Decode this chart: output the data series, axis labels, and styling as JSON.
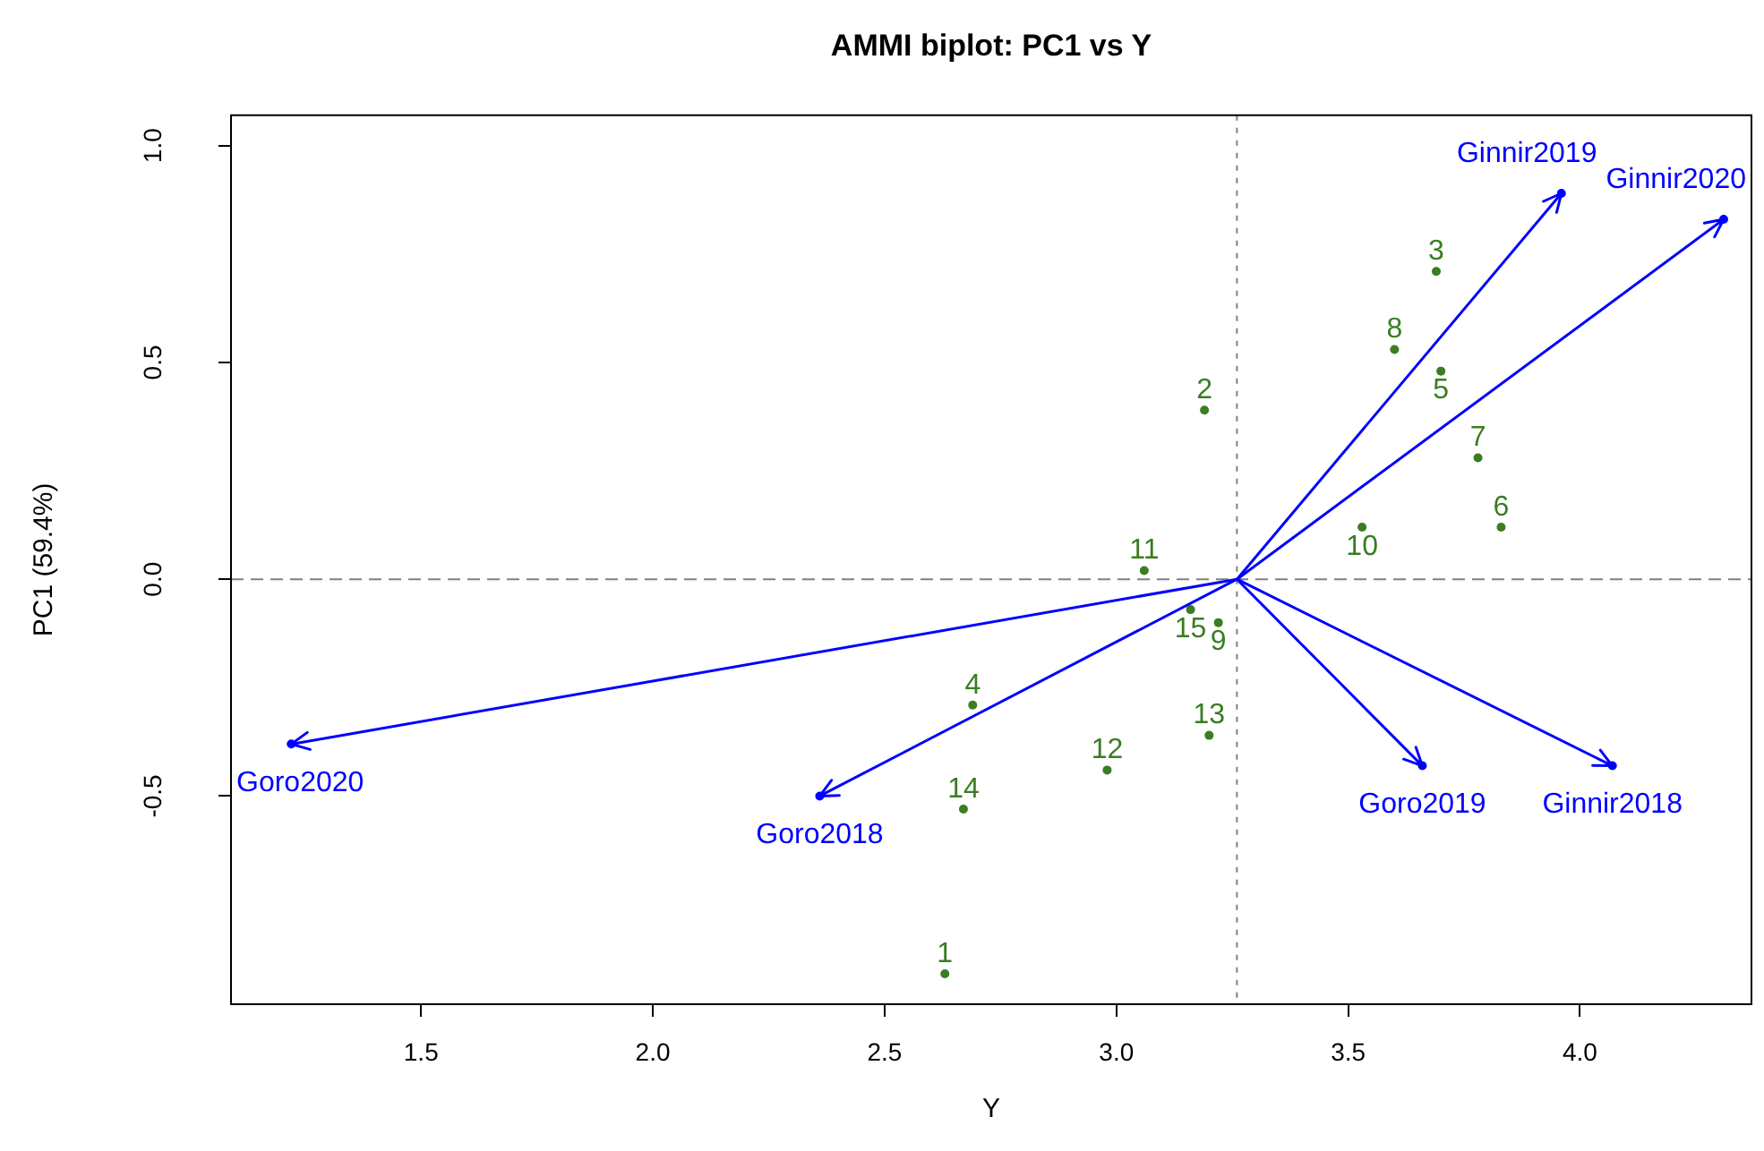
{
  "chart_data": {
    "type": "scatter",
    "title": "AMMI biplot: PC1 vs Y",
    "xlabel": "Y",
    "ylabel": "PC1 (59.4%)",
    "xlim": [
      1.09,
      4.37
    ],
    "ylim": [
      -0.98,
      1.07
    ],
    "xticks": [
      1.5,
      {
        "value": 2,
        "label": "2.0"
      },
      2.5,
      {
        "value": 3,
        "label": "3.0"
      },
      3.5,
      {
        "value": 4,
        "label": "4.0"
      }
    ],
    "yticks": [
      -0.5,
      {
        "value": 0,
        "label": "0.0"
      },
      0.5,
      {
        "value": 1,
        "label": "1.0"
      }
    ],
    "ref_lines": [
      {
        "axis": "x",
        "value": 3.26,
        "color": "#808080",
        "line_style": "dotted"
      },
      {
        "axis": "y",
        "value": 0,
        "color": "#808080",
        "line_style": "dashed"
      }
    ],
    "series": [
      {
        "type": "scatter",
        "color": "#3a7d22",
        "marker": "circle",
        "x": [
          2.63,
          3.19,
          3.69,
          2.69,
          3.7,
          3.83,
          3.78,
          3.6,
          3.22,
          3.53,
          3.06,
          2.98,
          3.2,
          2.67,
          3.16
        ],
        "values": [
          -0.91,
          0.39,
          0.71,
          -0.29,
          0.48,
          0.12,
          0.28,
          0.53,
          -0.1,
          0.12,
          0.02,
          -0.44,
          -0.36,
          -0.53,
          -0.07
        ]
      },
      {
        "type": "scatter",
        "color": "#0000ff",
        "marker": "circle",
        "x": [
          1.22,
          2.36,
          3.66,
          4.07,
          3.96,
          4.31
        ],
        "values": [
          -0.38,
          -0.5,
          -0.43,
          -0.43,
          0.89,
          0.83
        ]
      }
    ],
    "annotations": [
      {
        "text": "1",
        "x": 2.63,
        "y": -0.91
      },
      {
        "text": "2",
        "x": 3.19,
        "y": 0.39
      },
      {
        "text": "3",
        "x": 3.69,
        "y": 0.71
      },
      {
        "text": "4",
        "x": 2.69,
        "y": -0.29
      },
      {
        "text": "5",
        "x": 3.7,
        "y": 0.48
      },
      {
        "text": "6",
        "x": 3.83,
        "y": 0.12
      },
      {
        "text": "7",
        "x": 3.78,
        "y": 0.28
      },
      {
        "text": "8",
        "x": 3.6,
        "y": 0.53
      },
      {
        "text": "9",
        "x": 3.22,
        "y": -0.1
      },
      {
        "text": "10",
        "x": 3.53,
        "y": 0.12
      },
      {
        "text": "11",
        "x": 3.06,
        "y": 0.02
      },
      {
        "text": "12",
        "x": 2.98,
        "y": -0.44
      },
      {
        "text": "13",
        "x": 3.2,
        "y": -0.36
      },
      {
        "text": "14",
        "x": 2.67,
        "y": -0.53
      },
      {
        "text": "15",
        "x": 3.16,
        "y": -0.07
      },
      {
        "text": "Goro2020",
        "x": 1.22,
        "y": -0.38
      },
      {
        "text": "Goro2018",
        "x": 2.36,
        "y": -0.5
      },
      {
        "text": "Goro2019",
        "x": 3.66,
        "y": -0.43
      },
      {
        "text": "Ginnir2018",
        "x": 4.07,
        "y": -0.43
      },
      {
        "text": "Ginnir2019",
        "x": 3.96,
        "y": 0.89
      },
      {
        "text": "Ginnir2020",
        "x": 4.31,
        "y": 0.83
      }
    ]
  }
}
